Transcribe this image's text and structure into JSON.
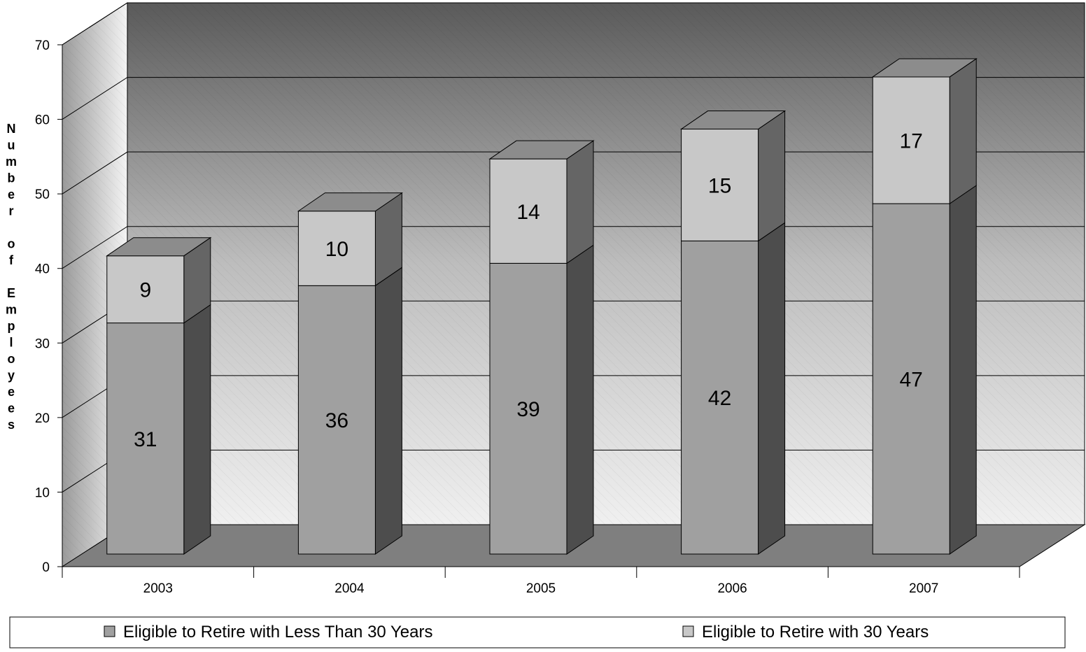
{
  "chart_data": {
    "type": "bar",
    "stacked": true,
    "three_d": true,
    "title": "",
    "xlabel": "",
    "ylabel": "Number of Employees",
    "categories": [
      "2003",
      "2004",
      "2005",
      "2006",
      "2007"
    ],
    "series": [
      {
        "name": "Eligible to Retire with Less Than 30 Years",
        "values": [
          31,
          36,
          39,
          42,
          47
        ],
        "color": "#a0a0a0"
      },
      {
        "name": "Eligible to Retire with 30 Years",
        "values": [
          9,
          10,
          14,
          15,
          17
        ],
        "color": "#c8c8c8"
      }
    ],
    "ylim": [
      0,
      70
    ],
    "yticks": [
      "0",
      "10",
      "20",
      "30",
      "40",
      "50",
      "60",
      "70"
    ],
    "grid": true,
    "legend_position": "bottom"
  }
}
